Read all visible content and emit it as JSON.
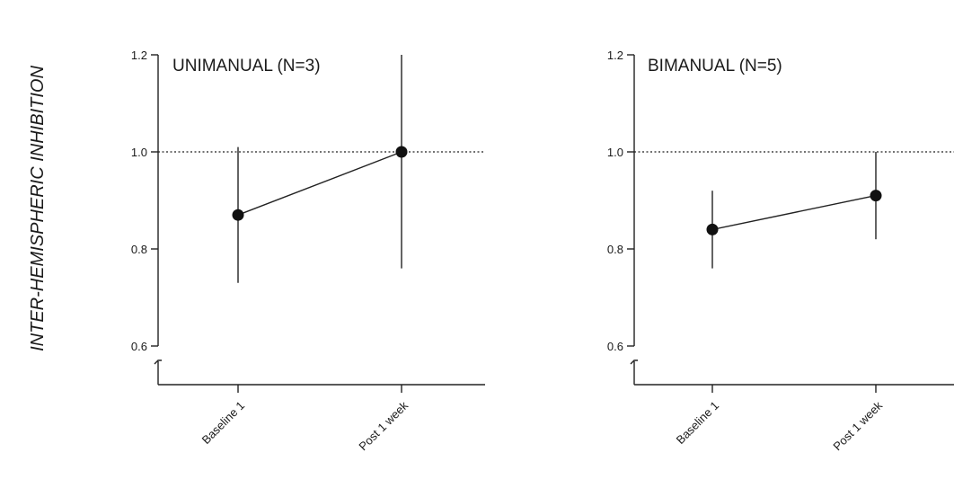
{
  "ylabel": "INTER-HEMISPHERIC INHIBITION",
  "chart_data": [
    {
      "type": "line",
      "title": "UNIMANUAL (N=3)",
      "categories": [
        "Baseline 1",
        "Post 1 week"
      ],
      "values": [
        0.87,
        1.0
      ],
      "error_low": [
        0.73,
        0.76
      ],
      "error_high": [
        1.01,
        1.2
      ],
      "ylim": [
        0.6,
        1.2
      ],
      "yticks": [
        "0.6",
        "0.8",
        "1.0",
        "1.2"
      ],
      "reference_line": 1.0,
      "axis_break": true,
      "grid": false
    },
    {
      "type": "line",
      "title": "BIMANUAL (N=5)",
      "categories": [
        "Baseline 1",
        "Post 1 week"
      ],
      "values": [
        0.84,
        0.91
      ],
      "error_low": [
        0.76,
        0.82
      ],
      "error_high": [
        0.92,
        1.0
      ],
      "ylim": [
        0.6,
        1.2
      ],
      "yticks": [
        "0.6",
        "0.8",
        "1.0",
        "1.2"
      ],
      "reference_line": 1.0,
      "axis_break": true,
      "grid": false
    }
  ]
}
